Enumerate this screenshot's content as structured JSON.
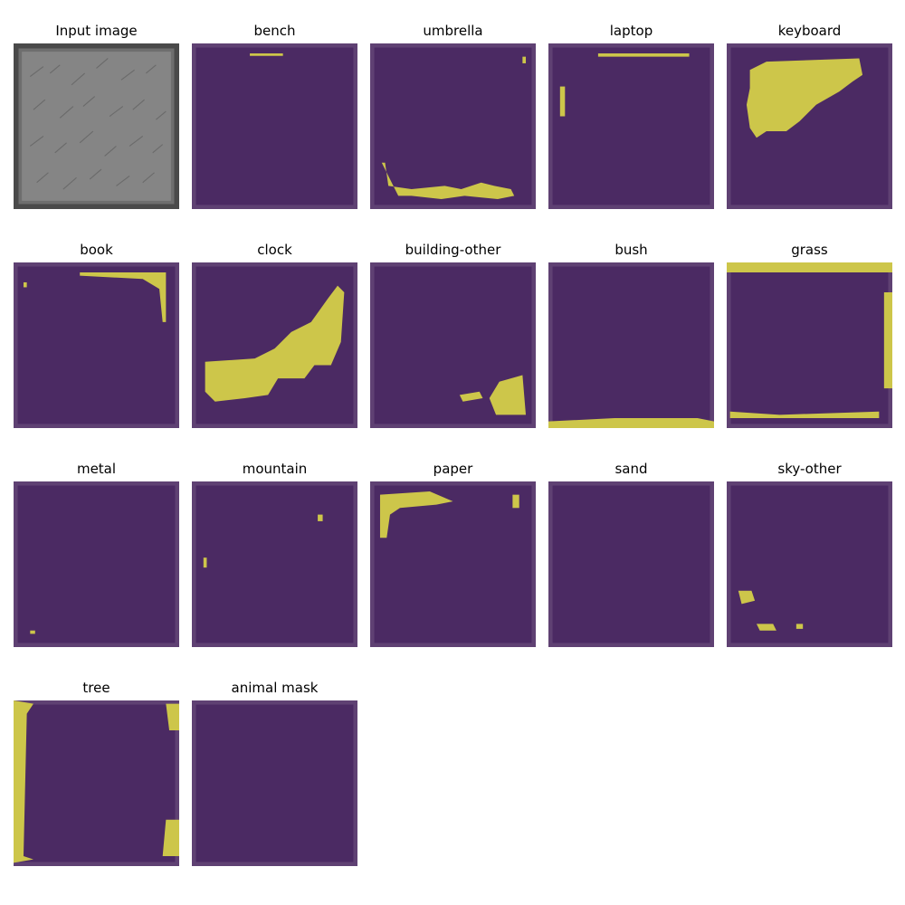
{
  "colors": {
    "background_class": "#4b2a63",
    "mask_class": "#cdc64a",
    "input_gray": "#808080",
    "frame_dark": "#3b2050"
  },
  "panels": [
    {
      "title": "Input image",
      "kind": "input"
    },
    {
      "title": "bench",
      "kind": "mask"
    },
    {
      "title": "umbrella",
      "kind": "mask"
    },
    {
      "title": "laptop",
      "kind": "mask"
    },
    {
      "title": "keyboard",
      "kind": "mask"
    },
    {
      "title": "book",
      "kind": "mask"
    },
    {
      "title": "clock",
      "kind": "mask"
    },
    {
      "title": "building-other",
      "kind": "mask"
    },
    {
      "title": "bush",
      "kind": "mask"
    },
    {
      "title": "grass",
      "kind": "mask"
    },
    {
      "title": "metal",
      "kind": "mask"
    },
    {
      "title": "mountain",
      "kind": "mask"
    },
    {
      "title": "paper",
      "kind": "mask"
    },
    {
      "title": "sand",
      "kind": "mask"
    },
    {
      "title": "sky-other",
      "kind": "mask"
    },
    {
      "title": "tree",
      "kind": "mask"
    },
    {
      "title": "animal mask",
      "kind": "mask"
    }
  ]
}
